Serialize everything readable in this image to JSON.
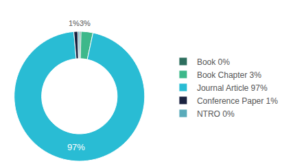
{
  "chart_data": {
    "type": "pie",
    "categories": [
      "Book 0%",
      "Book Chapter 3%",
      "Journal Article 97%",
      "Conference Paper 1%",
      "NTRO 0%"
    ],
    "values": [
      0.4,
      3,
      97,
      1,
      0.4
    ],
    "colors": [
      "#2d6e5e",
      "#3db88a",
      "#29bcd4",
      "#1a2340",
      "#5aabba"
    ],
    "value_labels": [
      null,
      null,
      "97%",
      null,
      null
    ],
    "annotations": [
      "1%3%"
    ],
    "legend": "right"
  }
}
